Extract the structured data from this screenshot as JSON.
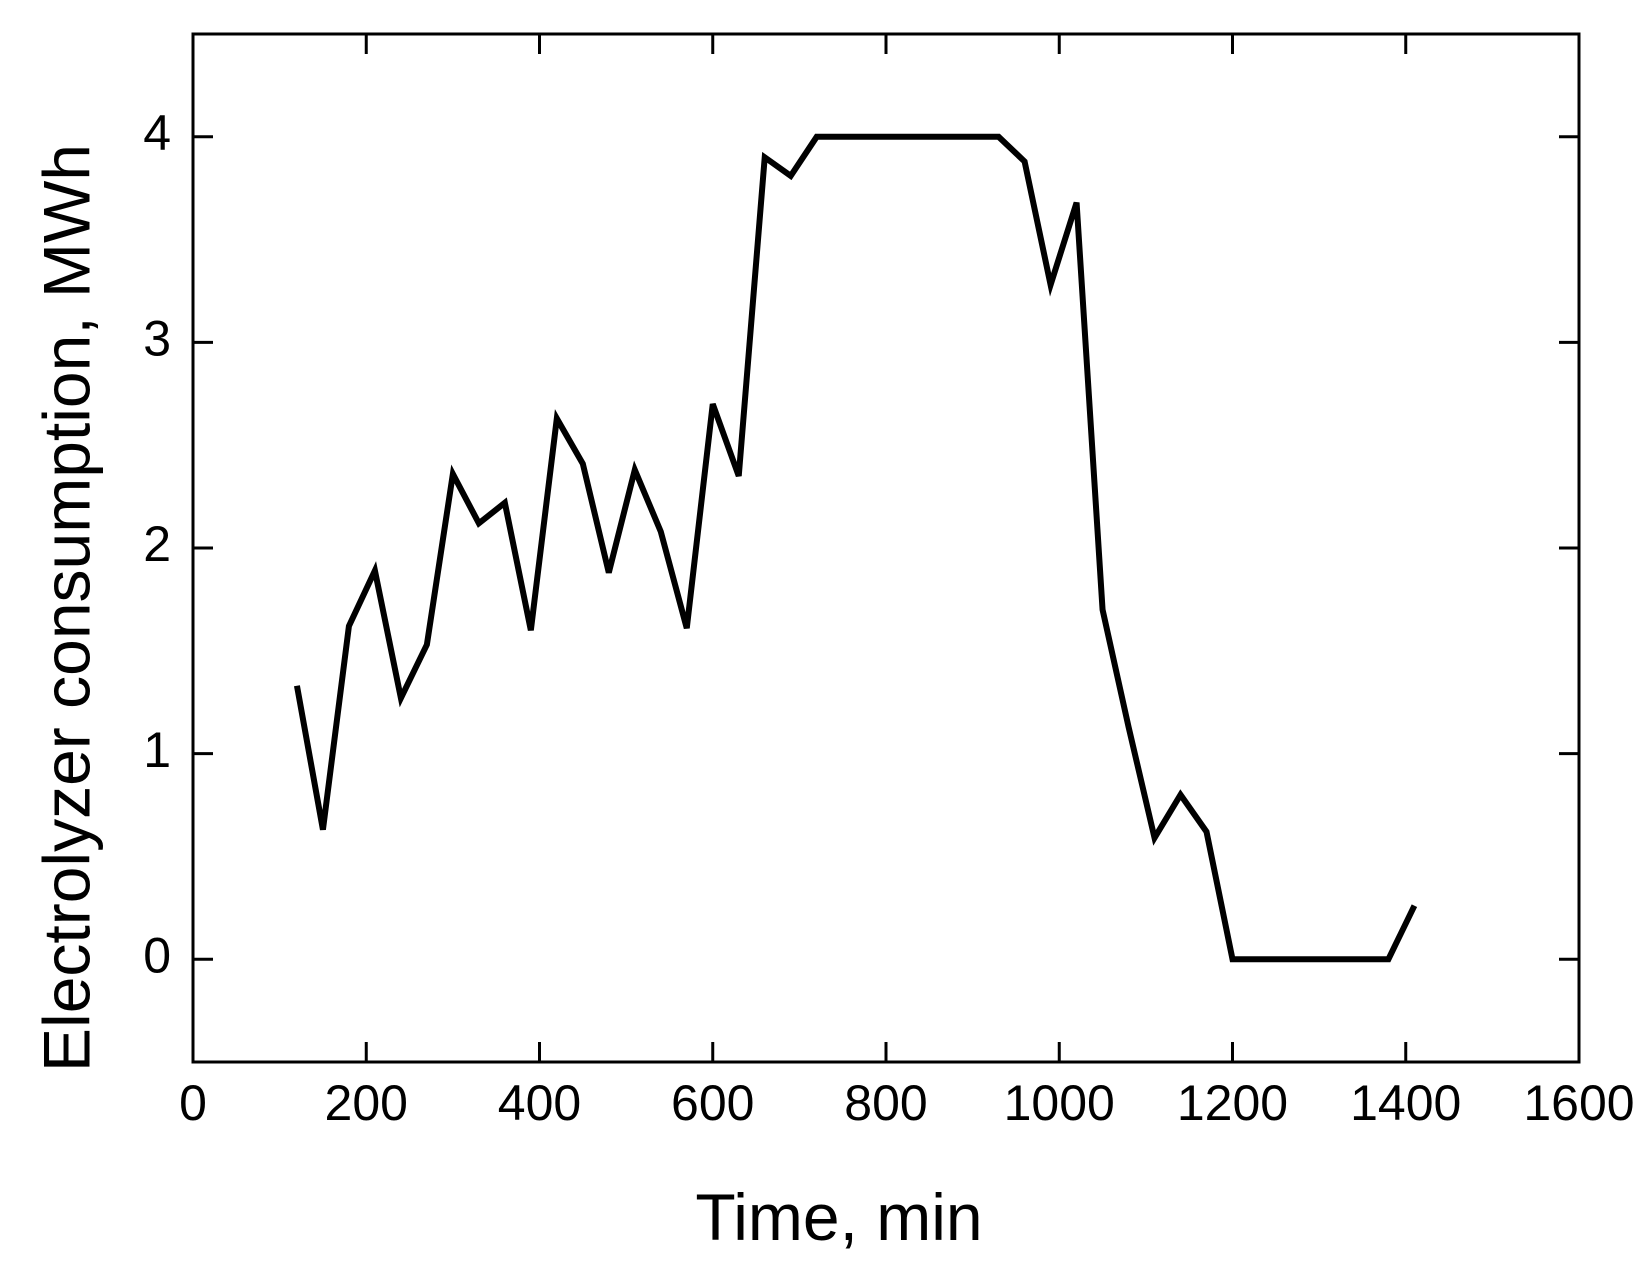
{
  "chart_data": {
    "type": "line",
    "x_label": "Time, min",
    "y_label": "Electrolyzer consumption, MWh",
    "x": [
      120,
      150,
      180,
      210,
      240,
      270,
      300,
      330,
      360,
      390,
      420,
      450,
      480,
      510,
      540,
      570,
      600,
      630,
      660,
      690,
      720,
      750,
      780,
      810,
      840,
      870,
      900,
      930,
      960,
      990,
      1020,
      1050,
      1080,
      1110,
      1140,
      1170,
      1200,
      1230,
      1260,
      1290,
      1320,
      1350,
      1380,
      1410
    ],
    "series": [
      {
        "color": "#000000",
        "values": [
          1.33,
          0.63,
          1.62,
          1.89,
          1.27,
          1.53,
          2.36,
          2.12,
          2.22,
          1.6,
          2.63,
          2.41,
          1.88,
          2.38,
          2.08,
          1.61,
          2.7,
          2.35,
          3.9,
          3.81,
          4,
          4,
          4,
          4,
          4,
          4,
          4,
          4,
          3.88,
          3.28,
          3.68,
          1.7,
          1.13,
          0.59,
          0.8,
          0.62,
          0,
          0,
          0,
          0,
          0,
          0,
          0,
          0.26
        ]
      }
    ],
    "xlim": [
      0,
      1600
    ],
    "xticks": [
      0,
      200,
      400,
      600,
      800,
      1000,
      1200,
      1400,
      1600
    ],
    "ylim": [
      -0.5,
      4.5
    ],
    "yticks": [
      0,
      1,
      2,
      3,
      4
    ],
    "grid": false
  }
}
